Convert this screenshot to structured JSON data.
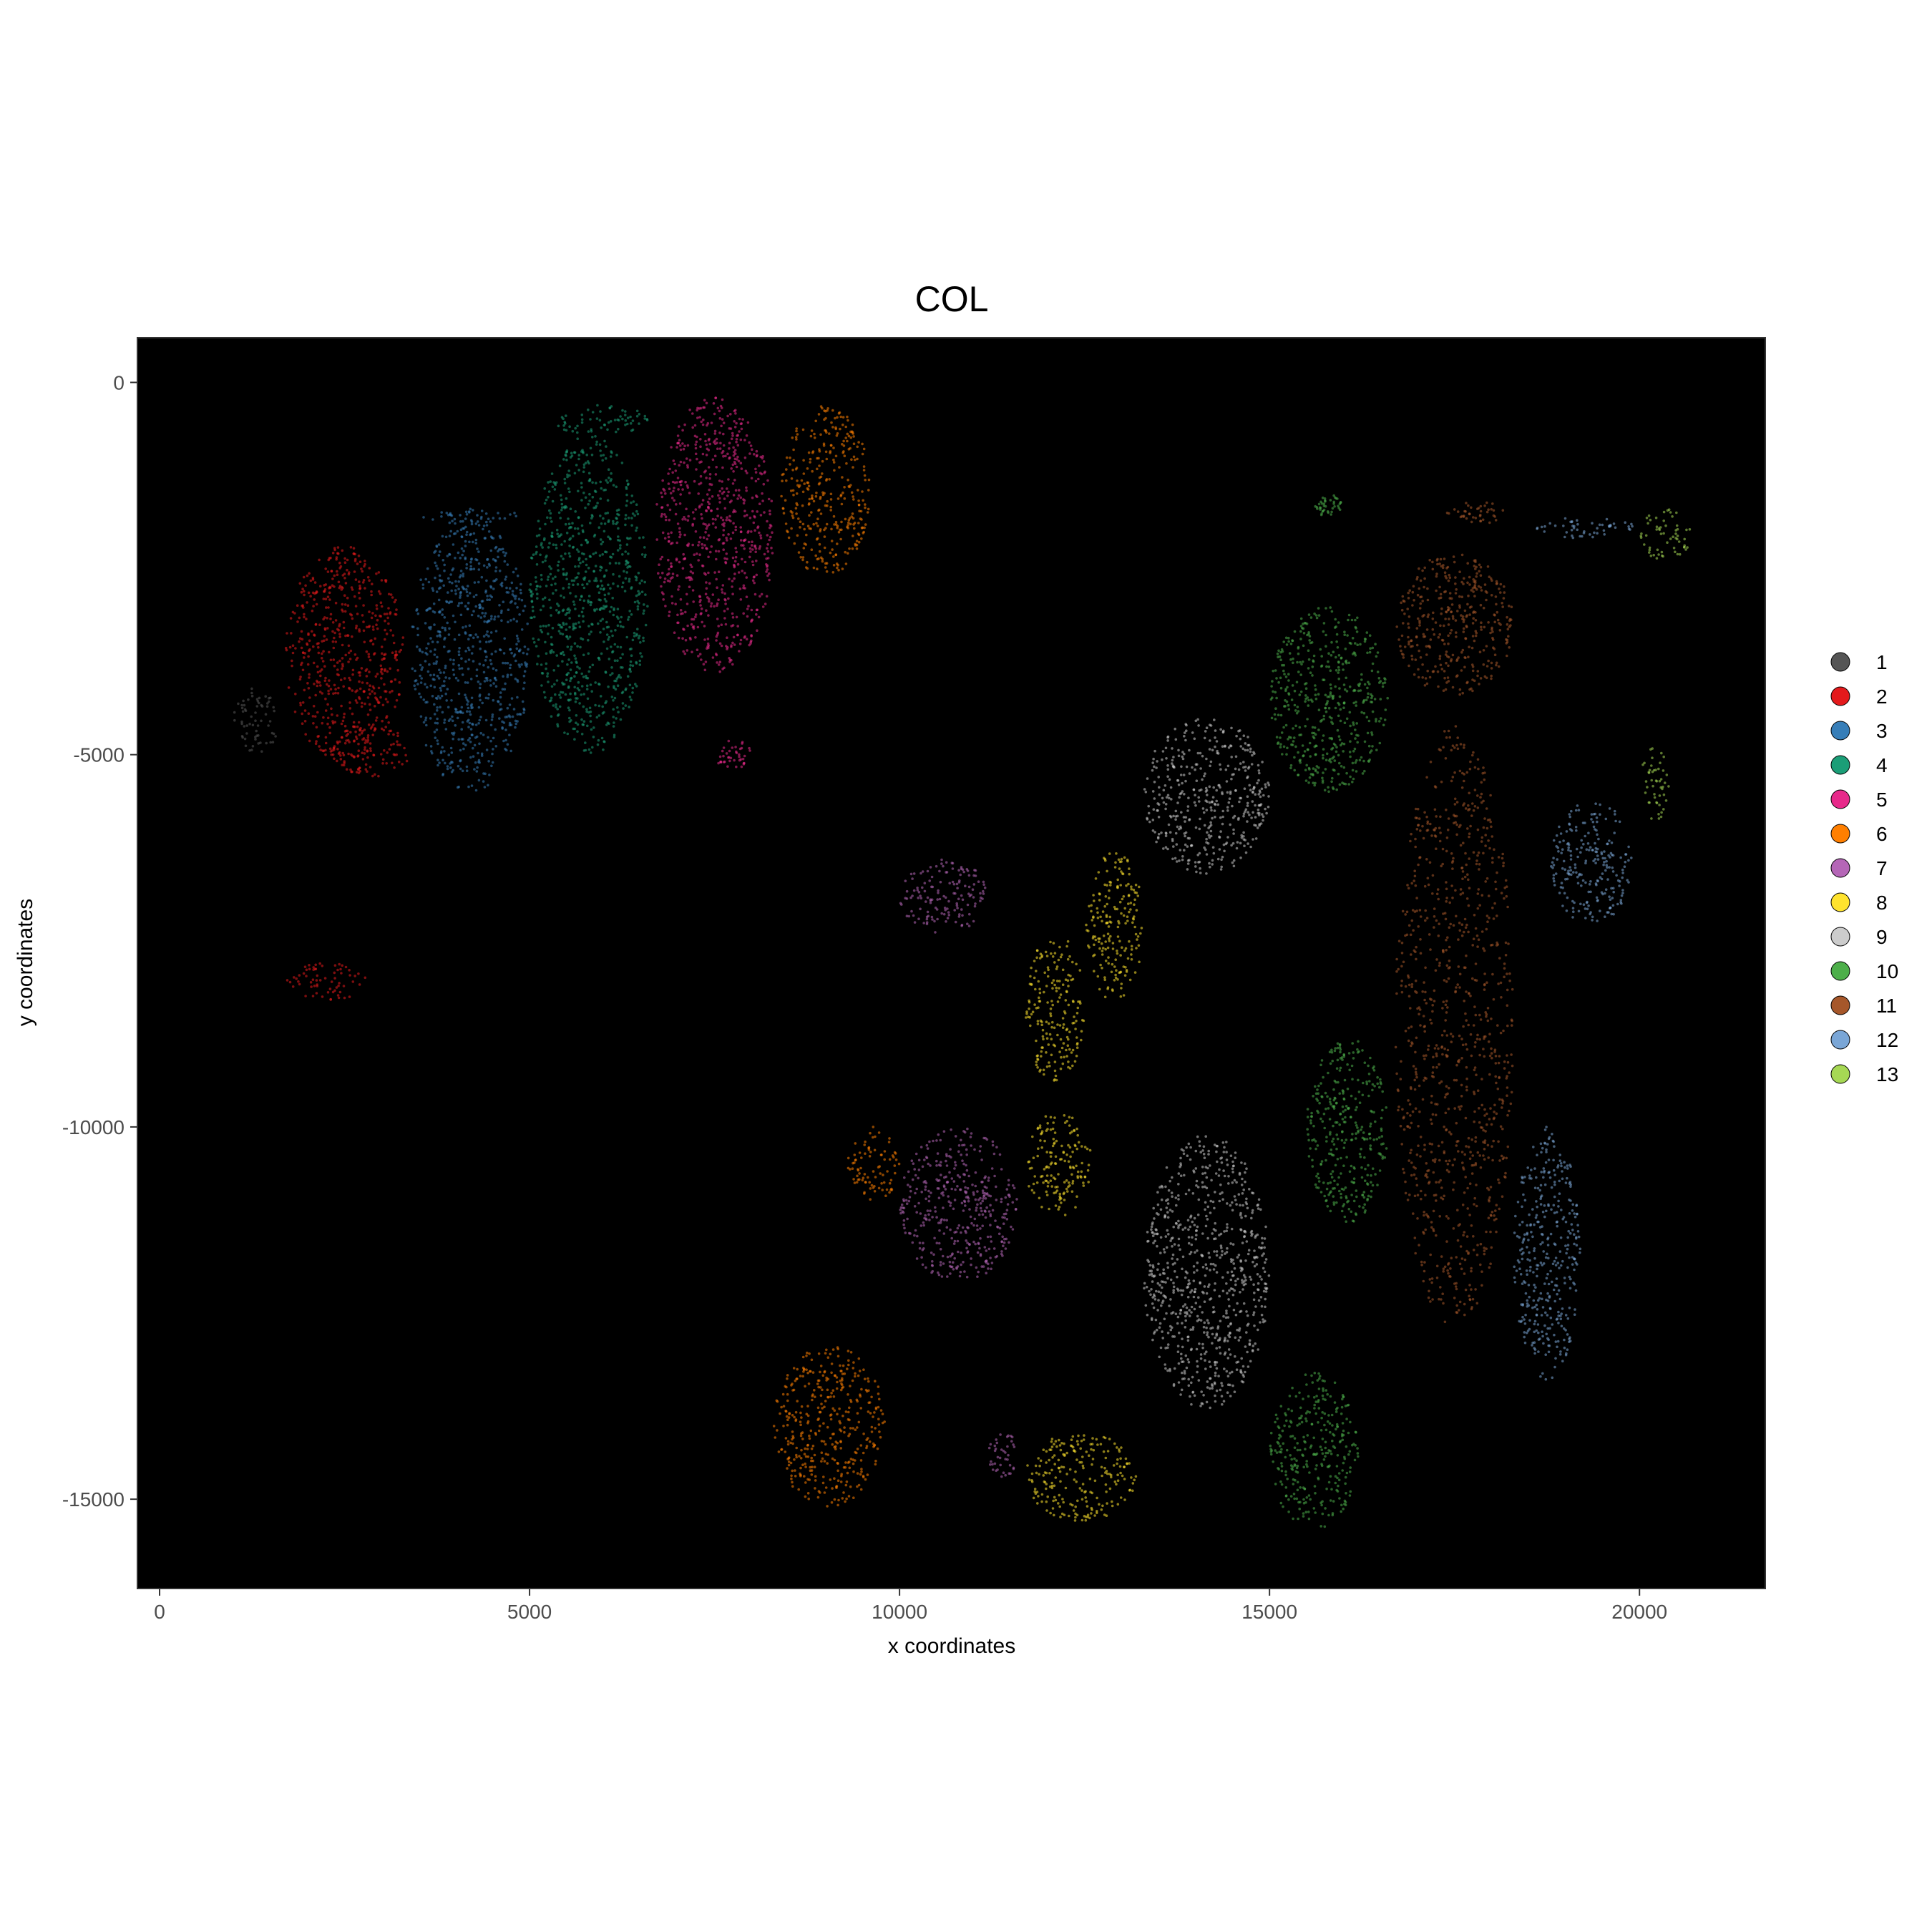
{
  "chart_data": {
    "type": "scatter",
    "title": "COL",
    "xlabel": "x coordinates",
    "ylabel": "y coordinates",
    "xlim": [
      -300,
      21700
    ],
    "ylim": [
      -16200,
      600
    ],
    "xticks": [
      0,
      5000,
      10000,
      15000,
      20000
    ],
    "yticks": [
      0,
      -5000,
      -10000,
      -15000
    ],
    "xtick_labels": [
      "0",
      "5000",
      "10000",
      "15000",
      "20000"
    ],
    "ytick_labels": [
      "0",
      "-5000",
      "-10000",
      "-15000"
    ],
    "background": "#000000",
    "grid": false,
    "legend_position": "right",
    "series": [
      {
        "name": "1",
        "color": "#555555",
        "regions": [
          [
            1000,
            1600,
            -5000,
            -4100
          ]
        ]
      },
      {
        "name": "2",
        "color": "#e41a1c",
        "regions": [
          [
            1700,
            3300,
            -5100,
            -2200
          ],
          [
            2300,
            3400,
            -5300,
            -4600
          ],
          [
            1700,
            2800,
            -8300,
            -7800
          ]
        ]
      },
      {
        "name": "3",
        "color": "#377eb8",
        "regions": [
          [
            3400,
            5000,
            -5500,
            -1800
          ],
          [
            3500,
            4900,
            -1900,
            -1700
          ]
        ]
      },
      {
        "name": "4",
        "color": "#1b9e77",
        "regions": [
          [
            5000,
            6600,
            -5000,
            -700
          ],
          [
            5300,
            6600,
            -700,
            -300
          ]
        ]
      },
      {
        "name": "5",
        "color": "#e7298a",
        "regions": [
          [
            6700,
            8300,
            -3900,
            -200
          ],
          [
            7500,
            8000,
            -5200,
            -4800
          ]
        ]
      },
      {
        "name": "6",
        "color": "#ff7f00",
        "regions": [
          [
            8400,
            9600,
            -2600,
            -300
          ],
          [
            8300,
            9800,
            -15100,
            -12900
          ],
          [
            9300,
            10000,
            -11000,
            -10000
          ]
        ]
      },
      {
        "name": "7",
        "color": "#b566b7",
        "regions": [
          [
            10000,
            11200,
            -7400,
            -6400
          ],
          [
            10000,
            11600,
            -12100,
            -10000
          ],
          [
            11200,
            11600,
            -14700,
            -14100
          ]
        ]
      },
      {
        "name": "8",
        "color": "#ffe32e",
        "regions": [
          [
            11700,
            12500,
            -9400,
            -7400
          ],
          [
            11700,
            12600,
            -11200,
            -9800
          ],
          [
            12500,
            13300,
            -8300,
            -6300
          ],
          [
            11700,
            13200,
            -15300,
            -14100
          ]
        ]
      },
      {
        "name": "9",
        "color": "#cccccc",
        "regions": [
          [
            13300,
            15000,
            -6600,
            -4500
          ],
          [
            13300,
            15000,
            -13800,
            -10100
          ]
        ]
      },
      {
        "name": "10",
        "color": "#4daf4a",
        "regions": [
          [
            15000,
            16600,
            -5500,
            -3000
          ],
          [
            15600,
            16000,
            -1800,
            -1500
          ],
          [
            15500,
            16600,
            -11300,
            -8800
          ],
          [
            15000,
            16200,
            -15400,
            -13300
          ]
        ]
      },
      {
        "name": "11",
        "color": "#a6572a",
        "regions": [
          [
            16700,
            18300,
            -4200,
            -2300
          ],
          [
            16700,
            18300,
            -12700,
            -4600
          ],
          [
            17400,
            18200,
            -1900,
            -1600
          ]
        ]
      },
      {
        "name": "12",
        "color": "#7aa6d6",
        "regions": [
          [
            18300,
            19200,
            -13400,
            -10000
          ],
          [
            18800,
            19900,
            -7300,
            -5600
          ],
          [
            18600,
            20000,
            -2100,
            -1800
          ]
        ]
      },
      {
        "name": "13",
        "color": "#a6d854",
        "regions": [
          [
            20000,
            20700,
            -2400,
            -1700
          ],
          [
            20000,
            20400,
            -5900,
            -4900
          ]
        ]
      }
    ]
  }
}
